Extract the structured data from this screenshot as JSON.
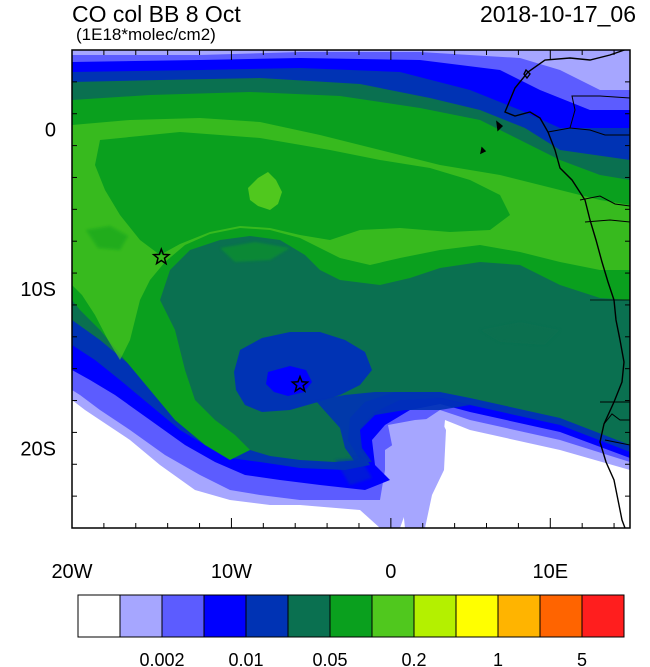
{
  "header": {
    "title": "CO col BB 8 Oct",
    "units": "(1E18*molec/cm2)",
    "timestamp": "2018-10-17_06"
  },
  "map": {
    "projection": "lat-lon",
    "lon_range": [
      -20,
      15
    ],
    "lat_range": [
      -25,
      5
    ],
    "ocean_fill": "#ffffff",
    "coastline_color": "#000000",
    "markers": [
      {
        "type": "star",
        "lon": -14.4,
        "lat": -8.0
      },
      {
        "type": "star",
        "lon": -5.7,
        "lat": -16.0
      }
    ],
    "axes": {
      "x_ticks": [
        {
          "lon": -20,
          "label": "20W"
        },
        {
          "lon": -10,
          "label": "10W"
        },
        {
          "lon": 0,
          "label": "0"
        },
        {
          "lon": 10,
          "label": "10E"
        }
      ],
      "y_ticks": [
        {
          "lat": 0,
          "label": "0"
        },
        {
          "lat": -10,
          "label": "10S"
        },
        {
          "lat": -20,
          "label": "20S"
        }
      ]
    }
  },
  "colorbar": {
    "colors": [
      "#ffffff",
      "#a6a6ff",
      "#5c5cff",
      "#0000ff",
      "#0033b4",
      "#0a7050",
      "#0aa01e",
      "#50c81e",
      "#b4f000",
      "#ffff00",
      "#ffb400",
      "#ff6400",
      "#ff1e1e"
    ],
    "labels": [
      "0.002",
      "0.01",
      "0.05",
      "0.2",
      "1",
      "5"
    ]
  }
}
